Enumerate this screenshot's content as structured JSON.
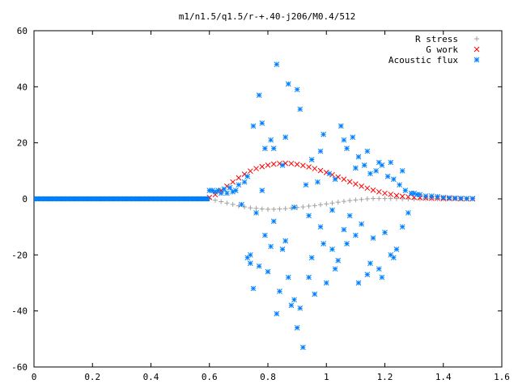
{
  "chart_data": {
    "type": "scatter",
    "title": "m1/n1.5/q1.5/r-+.40-j206/M0.4/512",
    "xlabel": "",
    "ylabel": "",
    "xlim": [
      0,
      1.6
    ],
    "ylim": [
      -60,
      60
    ],
    "xticks": [
      0,
      0.2,
      0.4,
      0.6,
      0.8,
      1,
      1.2,
      1.4,
      1.6
    ],
    "xtick_labels": [
      "0",
      "0.2",
      "0.4",
      "0.6",
      "0.8",
      "1",
      "1.2",
      "1.4",
      "1.6"
    ],
    "yticks": [
      -60,
      -40,
      -20,
      0,
      20,
      40,
      60
    ],
    "ytick_labels": [
      "-60",
      "-40",
      "-20",
      "0",
      "20",
      "40",
      "60"
    ],
    "grid": false,
    "legend_position": "top-right",
    "legend": [
      "R stress",
      "G work",
      "Acoustic flux"
    ],
    "colors": {
      "r_stress": "#a0a0a0",
      "g_work": "#ff0000",
      "acoustic_flux": "#0080ff"
    },
    "series": [
      {
        "name": "R stress",
        "marker": "plus",
        "x": [
          0.6,
          0.62,
          0.64,
          0.66,
          0.68,
          0.7,
          0.72,
          0.74,
          0.76,
          0.78,
          0.8,
          0.82,
          0.84,
          0.86,
          0.88,
          0.9,
          0.92,
          0.94,
          0.96,
          0.98,
          1.0,
          1.02,
          1.04,
          1.06,
          1.08,
          1.1,
          1.12,
          1.14,
          1.16,
          1.18,
          1.2,
          1.22,
          1.24,
          1.26,
          1.28,
          1.3,
          1.32,
          1.34,
          1.36,
          1.38,
          1.4,
          1.42,
          1.44,
          1.46,
          1.48,
          1.5
        ],
        "y": [
          0.0,
          -0.5,
          -1.0,
          -1.5,
          -2.0,
          -2.5,
          -2.9,
          -3.2,
          -3.4,
          -3.6,
          -3.7,
          -3.7,
          -3.6,
          -3.5,
          -3.3,
          -3.1,
          -2.9,
          -2.6,
          -2.4,
          -2.1,
          -1.8,
          -1.5,
          -1.2,
          -0.9,
          -0.6,
          -0.4,
          -0.2,
          0.0,
          0.1,
          0.1,
          0.1,
          0.1,
          0.1,
          0.0,
          0.0,
          0.0,
          0.0,
          0.0,
          0.0,
          0.0,
          0.0,
          0.0,
          0.0,
          0.0,
          0.0,
          0.0
        ]
      },
      {
        "name": "G work",
        "marker": "cross",
        "x": [
          0.6,
          0.62,
          0.64,
          0.66,
          0.68,
          0.7,
          0.72,
          0.74,
          0.76,
          0.78,
          0.8,
          0.82,
          0.84,
          0.86,
          0.88,
          0.9,
          0.92,
          0.94,
          0.96,
          0.98,
          1.0,
          1.02,
          1.04,
          1.06,
          1.08,
          1.1,
          1.12,
          1.14,
          1.16,
          1.18,
          1.2,
          1.22,
          1.24,
          1.26,
          1.28,
          1.3,
          1.32,
          1.34,
          1.36,
          1.38,
          1.4,
          1.42,
          1.44,
          1.46,
          1.48,
          1.5
        ],
        "y": [
          0.5,
          1.5,
          3.0,
          4.5,
          6.0,
          7.5,
          8.8,
          9.9,
          10.8,
          11.5,
          12.0,
          12.4,
          12.6,
          12.7,
          12.6,
          12.3,
          11.9,
          11.4,
          10.8,
          10.1,
          9.4,
          8.6,
          7.8,
          7.0,
          6.1,
          5.3,
          4.5,
          3.8,
          3.1,
          2.5,
          2.0,
          1.6,
          1.2,
          0.9,
          0.7,
          0.5,
          0.4,
          0.3,
          0.2,
          0.2,
          0.1,
          0.1,
          0.1,
          0.0,
          0.0,
          0.0
        ]
      },
      {
        "name": "Acoustic flux",
        "marker": "star",
        "x": [
          0.01,
          0.04,
          0.07,
          0.1,
          0.13,
          0.16,
          0.19,
          0.22,
          0.25,
          0.28,
          0.31,
          0.34,
          0.37,
          0.4,
          0.43,
          0.46,
          0.49,
          0.52,
          0.55,
          0.58,
          0.6,
          0.61,
          0.62,
          0.63,
          0.64,
          0.65,
          0.66,
          0.67,
          0.68,
          0.69,
          0.7,
          0.71,
          0.72,
          0.73,
          0.74,
          0.75,
          0.76,
          0.77,
          0.78,
          0.79,
          0.8,
          0.81,
          0.82,
          0.83,
          0.84,
          0.85,
          0.86,
          0.87,
          0.88,
          0.89,
          0.9,
          0.91,
          0.92,
          0.93,
          0.94,
          0.95,
          0.96,
          0.97,
          0.98,
          0.99,
          1.0,
          1.01,
          1.02,
          1.03,
          1.04,
          1.05,
          1.06,
          1.07,
          1.08,
          1.09,
          1.1,
          1.11,
          1.12,
          1.13,
          1.14,
          1.15,
          1.16,
          1.17,
          1.18,
          1.19,
          1.2,
          1.21,
          1.22,
          1.23,
          1.24,
          1.25,
          1.26,
          1.27,
          1.28,
          1.29,
          1.3,
          1.31,
          1.32,
          1.34,
          1.36,
          1.38,
          1.4,
          1.42,
          1.44,
          1.46,
          1.48,
          1.5,
          0.73,
          0.75,
          0.77,
          0.79,
          0.81,
          0.83,
          0.85,
          0.87,
          0.89,
          0.91,
          0.95,
          0.99,
          1.03,
          1.07,
          1.11,
          1.15,
          1.19,
          1.23,
          0.74,
          0.78,
          0.82,
          0.86,
          0.9,
          0.94,
          0.98,
          1.02,
          1.06,
          1.1,
          1.14,
          1.18,
          1.22,
          1.26
        ],
        "y": [
          0,
          0,
          0,
          0,
          0,
          0,
          0,
          0,
          0,
          0,
          0,
          0,
          0,
          0,
          0,
          0,
          0,
          0,
          0,
          0,
          3,
          3,
          2.5,
          3,
          2,
          3.5,
          2,
          4,
          2.5,
          3,
          5,
          -2,
          6,
          8,
          -20,
          26,
          -5,
          37,
          3,
          18,
          -26,
          21,
          -8,
          48,
          -33,
          12,
          -15,
          41,
          -38,
          -3,
          -46,
          32,
          -53,
          5,
          -28,
          14,
          -34,
          6,
          -10,
          23,
          -30,
          9,
          -18,
          7,
          -22,
          26,
          -11,
          18,
          -6,
          22,
          -13,
          15,
          -9,
          12,
          -27,
          9,
          -14,
          10,
          -25,
          12,
          -12,
          8,
          -20,
          7,
          -18,
          5,
          -10,
          3,
          -5,
          2,
          2,
          1.5,
          1.5,
          1,
          1,
          0.8,
          0.5,
          0.4,
          0.3,
          0.2,
          0.1,
          0.1,
          -21,
          -32,
          -24,
          -13,
          -17,
          -41,
          -18,
          -28,
          -36,
          -39,
          -21,
          -16,
          -25,
          -16,
          -30,
          -23,
          -28,
          -21,
          -23,
          27,
          18,
          22,
          39,
          -6,
          17,
          -4,
          21,
          11,
          17,
          13,
          13,
          10
        ]
      }
    ]
  }
}
